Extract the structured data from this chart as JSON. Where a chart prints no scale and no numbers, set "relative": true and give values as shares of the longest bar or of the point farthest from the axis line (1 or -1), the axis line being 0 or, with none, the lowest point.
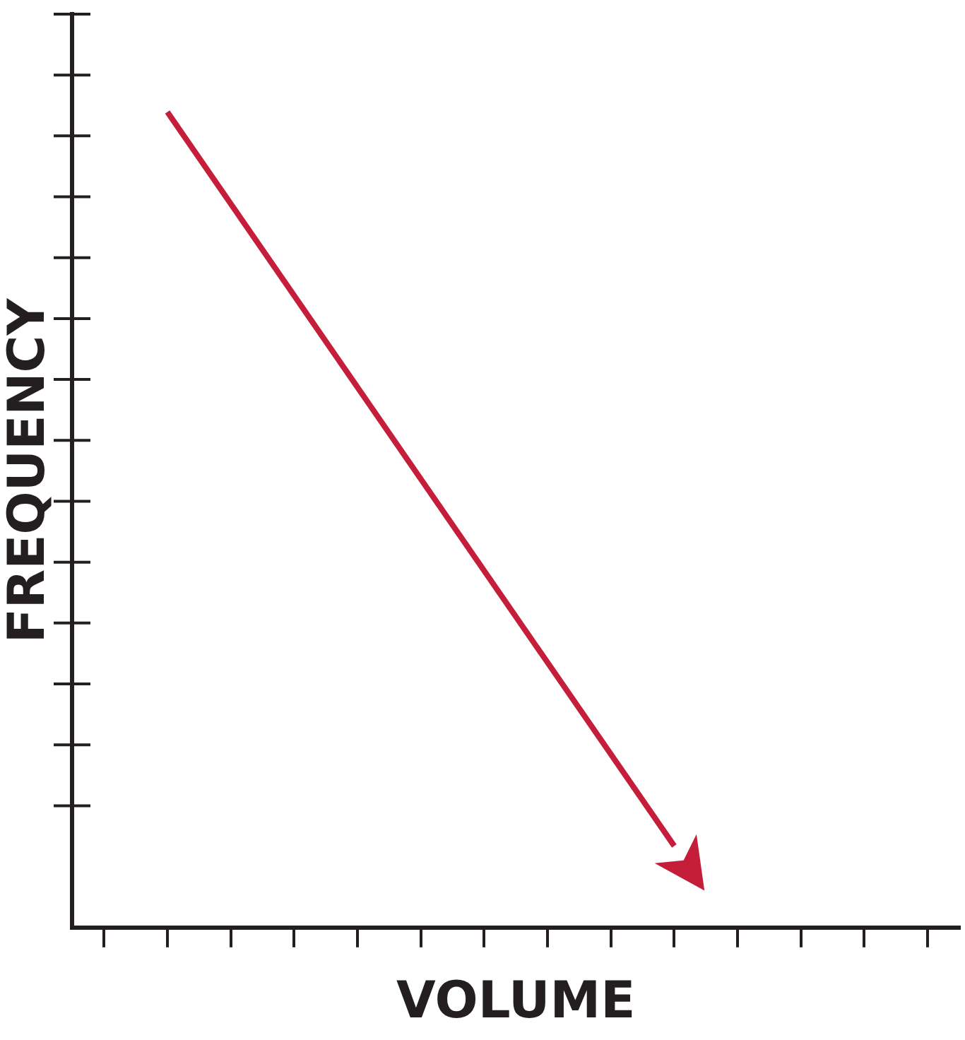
{
  "chart_data": {
    "type": "line",
    "relative": true,
    "xlabel": "VOLUME",
    "ylabel": "FREQUENCY",
    "categories": [
      null,
      null,
      null,
      null,
      null,
      null,
      null,
      null,
      null,
      null,
      null,
      null,
      null,
      null
    ],
    "series": [
      {
        "color": "#c41e3a",
        "values": [
          null,
          1,
          null,
          null,
          null,
          null,
          null,
          null,
          null,
          0.1,
          null,
          null,
          null,
          null
        ]
      }
    ],
    "marker": "none"
  }
}
